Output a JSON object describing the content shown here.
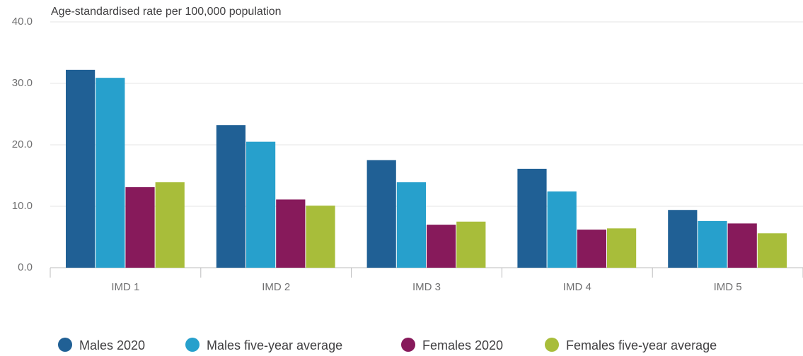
{
  "chart_data": {
    "type": "bar",
    "y_axis_label": "Age-standardised rate per 100,000 population",
    "categories": [
      "IMD 1",
      "IMD 2",
      "IMD 3",
      "IMD 4",
      "IMD 5"
    ],
    "series": [
      {
        "name": "Males 2020",
        "color": "#206095",
        "values": [
          32.2,
          23.2,
          17.5,
          16.1,
          9.4
        ]
      },
      {
        "name": "Males five-year average",
        "color": "#27a0cc",
        "values": [
          30.9,
          20.5,
          13.9,
          12.4,
          7.6
        ]
      },
      {
        "name": "Females 2020",
        "color": "#871a5b",
        "values": [
          13.1,
          11.1,
          7.0,
          6.2,
          7.2
        ]
      },
      {
        "name": "Females five-year average",
        "color": "#a8bd3a",
        "values": [
          13.9,
          10.1,
          7.5,
          6.4,
          5.6
        ]
      }
    ],
    "ylim": [
      0,
      40
    ],
    "yticks": [
      {
        "value": 0,
        "label": "0.0"
      },
      {
        "value": 10,
        "label": "10.0"
      },
      {
        "value": 20,
        "label": "20.0"
      },
      {
        "value": 30,
        "label": "30.0"
      },
      {
        "value": 40,
        "label": "40.0"
      }
    ],
    "grid": true,
    "legend": "bottom"
  }
}
